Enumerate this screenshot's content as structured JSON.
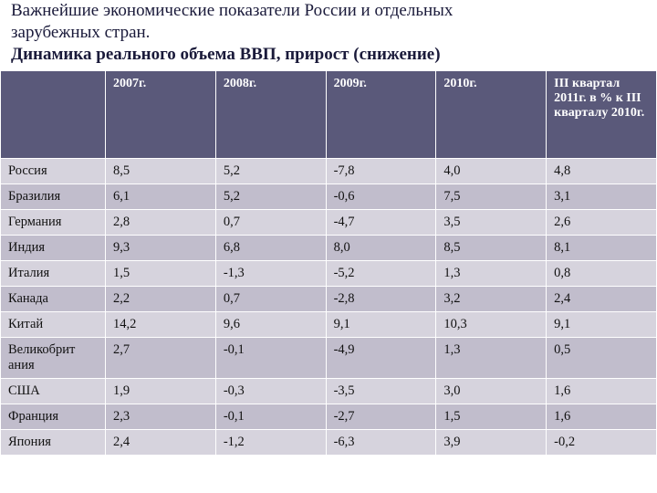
{
  "title": {
    "line1": "Важнейшие экономические показатели России и отдельных",
    "line2": "зарубежных стран.",
    "line3": "Динамика реального объема ВВП, прирост (снижение)"
  },
  "table": {
    "columns": [
      "",
      "2007г.",
      "2008г.",
      "2009г.",
      "2010г.",
      "III квартал 2011г. в % к III кварталу 2010г."
    ],
    "header_bg": "#5a597a",
    "header_fg": "#ffffff",
    "band_a_bg": "#d6d3dd",
    "band_b_bg": "#c1bdcc",
    "rows": [
      {
        "country": "Россия",
        "v": [
          "8,5",
          "5,2",
          "-7,8",
          "4,0",
          "4,8"
        ]
      },
      {
        "country": "Бразилия",
        "v": [
          "6,1",
          "5,2",
          "-0,6",
          "7,5",
          "3,1"
        ]
      },
      {
        "country": "Германия",
        "v": [
          "2,8",
          "0,7",
          "-4,7",
          "3,5",
          "2,6"
        ]
      },
      {
        "country": "Индия",
        "v": [
          "9,3",
          "6,8",
          "8,0",
          "8,5",
          "8,1"
        ]
      },
      {
        "country": "Италия",
        "v": [
          "1,5",
          "-1,3",
          "-5,2",
          "1,3",
          "0,8"
        ]
      },
      {
        "country": "Канада",
        "v": [
          "2,2",
          "0,7",
          "-2,8",
          "3,2",
          "2,4"
        ]
      },
      {
        "country": "Китай",
        "v": [
          "14,2",
          "9,6",
          "9,1",
          "10,3",
          "9,1"
        ]
      },
      {
        "country": "Великобритания",
        "v": [
          "2,7",
          "-0,1",
          "-4,9",
          "1,3",
          "0,5"
        ]
      },
      {
        "country": "США",
        "v": [
          "1,9",
          "-0,3",
          "-3,5",
          "3,0",
          "1,6"
        ]
      },
      {
        "country": "Франция",
        "v": [
          "2,3",
          "-0,1",
          "-2,7",
          "1,5",
          "1,6"
        ]
      },
      {
        "country": "Япония",
        "v": [
          "2,4",
          "-1,2",
          "-6,3",
          "3,9",
          "-0,2"
        ]
      }
    ]
  }
}
